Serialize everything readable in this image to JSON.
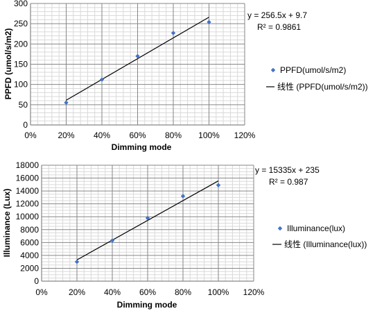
{
  "colors": {
    "marker": "#4472C4",
    "trendline": "#000000",
    "major_grid": "#868686",
    "minor_grid": "#d9d9d9",
    "axis": "#868686"
  },
  "chart_data": [
    {
      "type": "scatter",
      "title": "",
      "xlabel": "Dimming mode",
      "ylabel": "PPFD (umol/s/m2)",
      "xlim": [
        0,
        1.2
      ],
      "ylim": [
        0,
        300
      ],
      "x_ticks": [
        "0%",
        "20%",
        "40%",
        "60%",
        "80%",
        "100%",
        "120%"
      ],
      "y_ticks": [
        "0",
        "50",
        "100",
        "150",
        "200",
        "250",
        "300"
      ],
      "grid": true,
      "legend_position": "right",
      "series": [
        {
          "name": "PPFD(umol/s/m2)",
          "points": [
            {
              "x": 0.2,
              "y": 55
            },
            {
              "x": 0.4,
              "y": 112
            },
            {
              "x": 0.6,
              "y": 170
            },
            {
              "x": 0.8,
              "y": 227
            },
            {
              "x": 1.0,
              "y": 254
            }
          ]
        }
      ],
      "trendline": {
        "name": "线性 (PPFD(umol/s/m2))",
        "slope": 256.5,
        "intercept": 9.7,
        "x_range": [
          0.2,
          1.0
        ],
        "equation": "y = 256.5x + 9.7",
        "r_squared": "R² = 0.9861"
      }
    },
    {
      "type": "scatter",
      "title": "",
      "xlabel": "Dimming mode",
      "ylabel": "Illuminance (Lux)",
      "xlim": [
        0,
        1.2
      ],
      "ylim": [
        0,
        18000
      ],
      "x_ticks": [
        "0%",
        "20%",
        "40%",
        "60%",
        "80%",
        "100%",
        "120%"
      ],
      "y_ticks": [
        "0",
        "2000",
        "4000",
        "6000",
        "8000",
        "10000",
        "12000",
        "14000",
        "16000",
        "18000"
      ],
      "grid": true,
      "legend_position": "right",
      "series": [
        {
          "name": "Illuminance(lux)",
          "points": [
            {
              "x": 0.2,
              "y": 3000
            },
            {
              "x": 0.4,
              "y": 6300
            },
            {
              "x": 0.6,
              "y": 9800
            },
            {
              "x": 0.8,
              "y": 13200
            },
            {
              "x": 1.0,
              "y": 14900
            }
          ]
        }
      ],
      "trendline": {
        "name": "线性 (Illuminance(lux))",
        "slope": 15335,
        "intercept": 235,
        "x_range": [
          0.2,
          1.0
        ],
        "equation": "y = 15335x + 235",
        "r_squared": "R² = 0.987"
      }
    }
  ]
}
